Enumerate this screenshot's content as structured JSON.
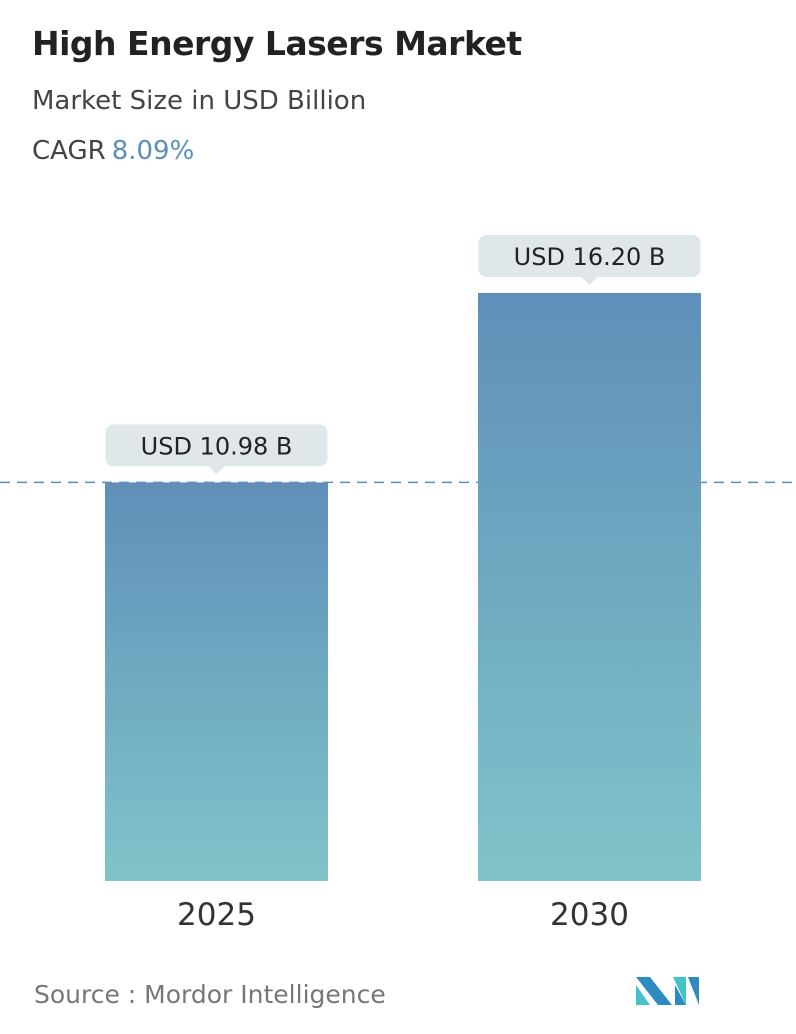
{
  "header": {
    "title": "High Energy Lasers Market",
    "subtitle": "Market Size in USD Billion",
    "cagr_label": "CAGR",
    "cagr_value": "8.09%"
  },
  "chart_data": {
    "type": "bar",
    "categories": [
      "2025",
      "2030"
    ],
    "values": [
      10.98,
      16.2
    ],
    "data_labels": [
      "USD 10.98 B",
      "USD 16.20 B"
    ],
    "ylabel": "Market Size in USD Billion",
    "reference_line": {
      "value": 10.98,
      "style": "dashed"
    },
    "grid": false,
    "colors": {
      "bar_top": "#5f8fb9",
      "bar_bottom": "#80c4c9",
      "label_bg": "#dfe7ea",
      "ref_line": "#5f8fb9"
    }
  },
  "footer": {
    "source": "Source :  Mordor Intelligence",
    "logo_text": "Mordor Intelligence"
  }
}
